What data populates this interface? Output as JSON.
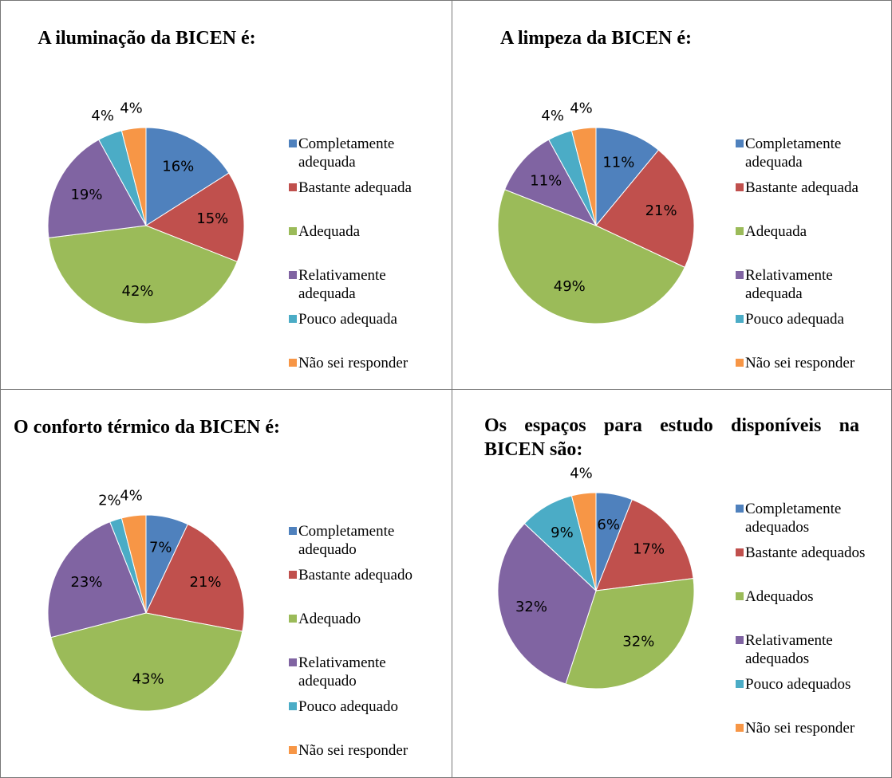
{
  "chart_data": [
    {
      "type": "pie",
      "title": "A iluminação da BICEN é:",
      "categories": [
        "Completamente adequada",
        "Bastante adequada",
        "Adequada",
        "Relativamente adequada",
        "Pouco adequada",
        "Não sei responder"
      ],
      "values": [
        16,
        15,
        42,
        19,
        4,
        4
      ],
      "value_labels": [
        "16%",
        "15%",
        "42%",
        "19%",
        "4%",
        "4%"
      ],
      "colors": [
        "#4f81bd",
        "#c0504d",
        "#9bbb59",
        "#8064a2",
        "#4bacc6",
        "#f79646"
      ]
    },
    {
      "type": "pie",
      "title": "A limpeza da BICEN é:",
      "categories": [
        "Completamente adequada",
        "Bastante adequada",
        "Adequada",
        "Relativamente adequada",
        "Pouco adequada",
        "Não sei responder"
      ],
      "values": [
        11,
        21,
        49,
        11,
        4,
        4
      ],
      "value_labels": [
        "11%",
        "21%",
        "49%",
        "11%",
        "4%",
        "4%"
      ],
      "colors": [
        "#4f81bd",
        "#c0504d",
        "#9bbb59",
        "#8064a2",
        "#4bacc6",
        "#f79646"
      ]
    },
    {
      "type": "pie",
      "title": "O conforto térmico da BICEN é:",
      "categories": [
        "Completamente adequado",
        "Bastante adequado",
        "Adequado",
        "Relativamente adequado",
        "Pouco adequado",
        "Não sei responder"
      ],
      "values": [
        7,
        21,
        43,
        23,
        2,
        4
      ],
      "value_labels": [
        "7%",
        "21%",
        "43%",
        "23%",
        "2%",
        "4%"
      ],
      "colors": [
        "#4f81bd",
        "#c0504d",
        "#9bbb59",
        "#8064a2",
        "#4bacc6",
        "#f79646"
      ]
    },
    {
      "type": "pie",
      "title": "Os espaços para estudo disponíveis na BICEN são:",
      "categories": [
        "Completamente adequados",
        "Bastante adequados",
        "Adequados",
        "Relativamente adequados",
        "Pouco adequados",
        "Não sei responder"
      ],
      "values": [
        6,
        17,
        32,
        32,
        9,
        4
      ],
      "value_labels": [
        "6%",
        "17%",
        "32%",
        "32%",
        "9%",
        "4%"
      ],
      "colors": [
        "#4f81bd",
        "#c0504d",
        "#9bbb59",
        "#8064a2",
        "#4bacc6",
        "#f79646"
      ]
    }
  ]
}
